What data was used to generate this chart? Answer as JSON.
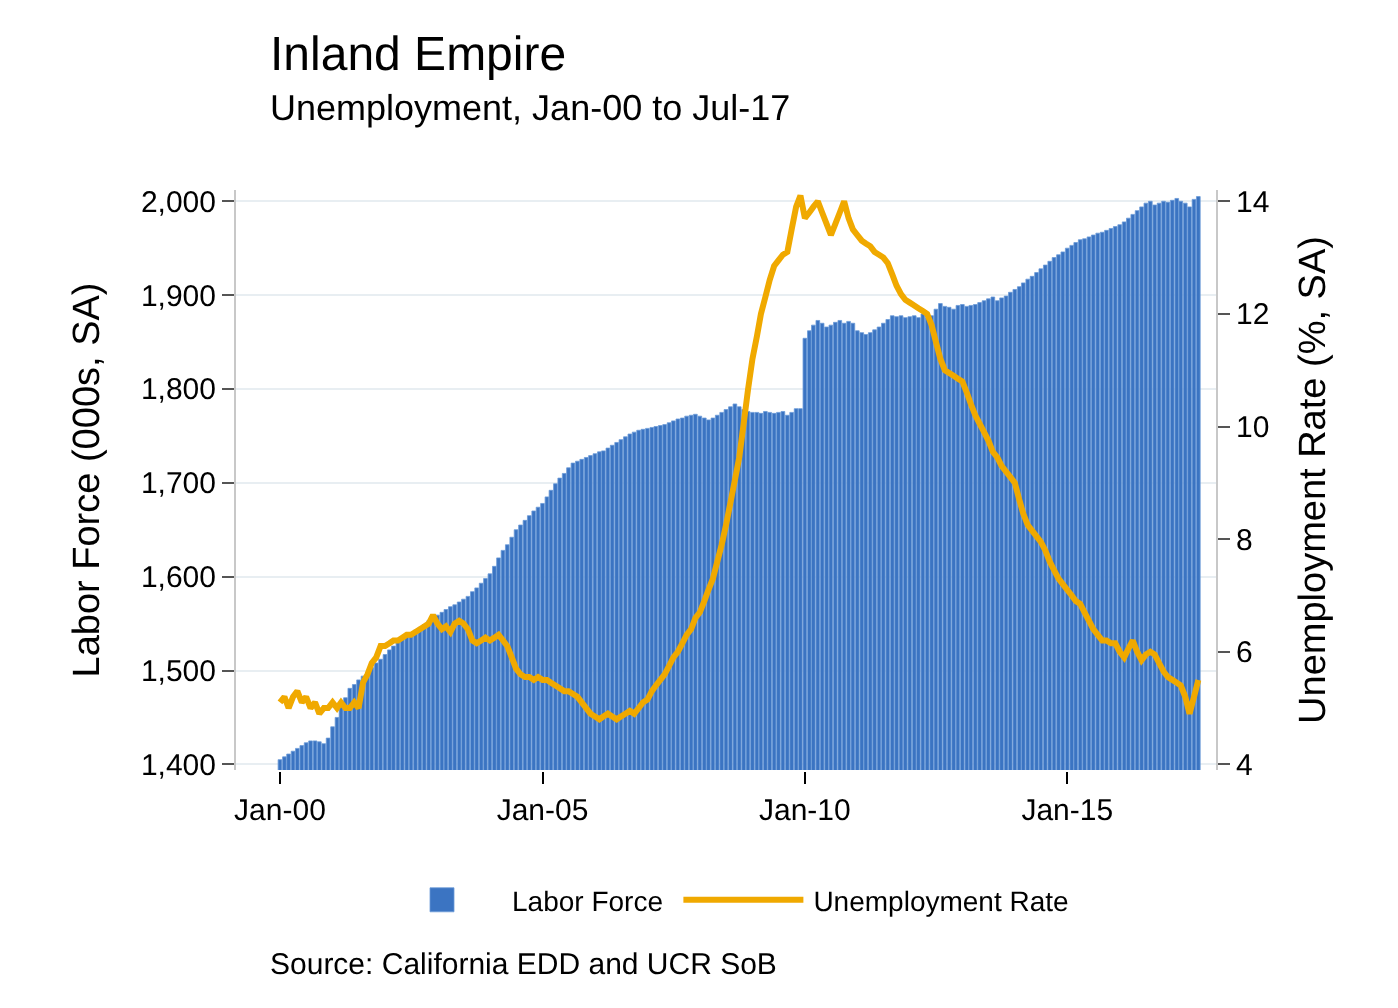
{
  "chart_data": {
    "type": "bar",
    "title": "Inland Empire",
    "subtitle": "Unemployment, Jan-00 to Jul-17",
    "xlabel": null,
    "ylabel": "Labor Force (000s, SA)",
    "y2label": "Unemployment Rate (%, SA)",
    "x": [
      "2000-01",
      "2000-02",
      "2000-03",
      "2000-04",
      "2000-05",
      "2000-06",
      "2000-07",
      "2000-08",
      "2000-09",
      "2000-10",
      "2000-11",
      "2000-12",
      "2001-01",
      "2001-02",
      "2001-03",
      "2001-04",
      "2001-05",
      "2001-06",
      "2001-07",
      "2001-08",
      "2001-09",
      "2001-10",
      "2001-11",
      "2001-12",
      "2002-01",
      "2002-02",
      "2002-03",
      "2002-04",
      "2002-05",
      "2002-06",
      "2002-07",
      "2002-08",
      "2002-09",
      "2002-10",
      "2002-11",
      "2002-12",
      "2003-01",
      "2003-02",
      "2003-03",
      "2003-04",
      "2003-05",
      "2003-06",
      "2003-07",
      "2003-08",
      "2003-09",
      "2003-10",
      "2003-11",
      "2003-12",
      "2004-01",
      "2004-02",
      "2004-03",
      "2004-04",
      "2004-05",
      "2004-06",
      "2004-07",
      "2004-08",
      "2004-09",
      "2004-10",
      "2004-11",
      "2004-12",
      "2005-01",
      "2005-02",
      "2005-03",
      "2005-04",
      "2005-05",
      "2005-06",
      "2005-07",
      "2005-08",
      "2005-09",
      "2005-10",
      "2005-11",
      "2005-12",
      "2006-01",
      "2006-02",
      "2006-03",
      "2006-04",
      "2006-05",
      "2006-06",
      "2006-07",
      "2006-08",
      "2006-09",
      "2006-10",
      "2006-11",
      "2006-12",
      "2007-01",
      "2007-02",
      "2007-03",
      "2007-04",
      "2007-05",
      "2007-06",
      "2007-07",
      "2007-08",
      "2007-09",
      "2007-10",
      "2007-11",
      "2007-12",
      "2008-01",
      "2008-02",
      "2008-03",
      "2008-04",
      "2008-05",
      "2008-06",
      "2008-07",
      "2008-08",
      "2008-09",
      "2008-10",
      "2008-11",
      "2008-12",
      "2009-01",
      "2009-02",
      "2009-03",
      "2009-04",
      "2009-05",
      "2009-06",
      "2009-07",
      "2009-08",
      "2009-09",
      "2009-10",
      "2009-11",
      "2009-12",
      "2010-01",
      "2010-02",
      "2010-03",
      "2010-04",
      "2010-05",
      "2010-06",
      "2010-07",
      "2010-08",
      "2010-09",
      "2010-10",
      "2010-11",
      "2010-12",
      "2011-01",
      "2011-02",
      "2011-03",
      "2011-04",
      "2011-05",
      "2011-06",
      "2011-07",
      "2011-08",
      "2011-09",
      "2011-10",
      "2011-11",
      "2011-12",
      "2012-01",
      "2012-02",
      "2012-03",
      "2012-04",
      "2012-05",
      "2012-06",
      "2012-07",
      "2012-08",
      "2012-09",
      "2012-10",
      "2012-11",
      "2012-12",
      "2013-01",
      "2013-02",
      "2013-03",
      "2013-04",
      "2013-05",
      "2013-06",
      "2013-07",
      "2013-08",
      "2013-09",
      "2013-10",
      "2013-11",
      "2013-12",
      "2014-01",
      "2014-02",
      "2014-03",
      "2014-04",
      "2014-05",
      "2014-06",
      "2014-07",
      "2014-08",
      "2014-09",
      "2014-10",
      "2014-11",
      "2014-12",
      "2015-01",
      "2015-02",
      "2015-03",
      "2015-04",
      "2015-05",
      "2015-06",
      "2015-07",
      "2015-08",
      "2015-09",
      "2015-10",
      "2015-11",
      "2015-12",
      "2016-01",
      "2016-02",
      "2016-03",
      "2016-04",
      "2016-05",
      "2016-06",
      "2016-07",
      "2016-08",
      "2016-09",
      "2016-10",
      "2016-11",
      "2016-12",
      "2017-01",
      "2017-02",
      "2017-03",
      "2017-04",
      "2017-05",
      "2017-06",
      "2017-07"
    ],
    "series": [
      {
        "name": "Labor Force",
        "color": "#3b74c2",
        "values": [
          1405,
          1408,
          1411,
          1414,
          1417,
          1420,
          1423,
          1425,
          1425,
          1424,
          1422,
          1428,
          1440,
          1450,
          1461,
          1471,
          1481,
          1485,
          1490,
          1494,
          1498,
          1503,
          1508,
          1512,
          1517,
          1522,
          1526,
          1531,
          1534,
          1537,
          1540,
          1543,
          1546,
          1549,
          1553,
          1556,
          1559,
          1562,
          1565,
          1568,
          1570,
          1573,
          1576,
          1579,
          1584,
          1588,
          1593,
          1598,
          1603,
          1611,
          1620,
          1628,
          1634,
          1642,
          1650,
          1655,
          1660,
          1665,
          1670,
          1674,
          1678,
          1685,
          1692,
          1699,
          1705,
          1710,
          1716,
          1721,
          1723,
          1725,
          1727,
          1729,
          1731,
          1733,
          1734,
          1737,
          1740,
          1743,
          1746,
          1749,
          1752,
          1754,
          1756,
          1757,
          1758,
          1759,
          1760,
          1761,
          1762,
          1764,
          1766,
          1768,
          1769,
          1771,
          1772,
          1773,
          1771,
          1769,
          1767,
          1769,
          1772,
          1775,
          1778,
          1781,
          1784,
          1781,
          1778,
          1776,
          1775,
          1775,
          1774,
          1776,
          1775,
          1774,
          1775,
          1776,
          1772,
          1775,
          1779,
          1779,
          1854,
          1862,
          1868,
          1873,
          1870,
          1866,
          1868,
          1871,
          1873,
          1870,
          1872,
          1870,
          1862,
          1860,
          1858,
          1860,
          1863,
          1866,
          1870,
          1874,
          1878,
          1877,
          1878,
          1876,
          1877,
          1878,
          1876,
          1880,
          1876,
          1878,
          1885,
          1891,
          1888,
          1887,
          1885,
          1889,
          1890,
          1888,
          1889,
          1890,
          1892,
          1894,
          1896,
          1898,
          1894,
          1897,
          1899,
          1903,
          1906,
          1909,
          1913,
          1917,
          1920,
          1924,
          1928,
          1932,
          1936,
          1940,
          1943,
          1946,
          1950,
          1953,
          1956,
          1959,
          1960,
          1962,
          1964,
          1966,
          1967,
          1969,
          1971,
          1973,
          1975,
          1978,
          1982,
          1986,
          1990,
          1994,
          1998,
          2000,
          1996,
          1998,
          2000,
          1999,
          2001,
          2003,
          2000,
          1998,
          1994,
          2002,
          2005
        ]
      },
      {
        "name": "Unemployment Rate",
        "type": "line",
        "axis": "y2",
        "color": "#f0a900",
        "values": [
          5.1,
          5.2,
          5.0,
          5.2,
          5.3,
          5.1,
          5.2,
          5.0,
          5.1,
          4.9,
          5.0,
          5.0,
          5.1,
          5.0,
          5.1,
          5.0,
          5.0,
          5.1,
          5.0,
          5.45,
          5.6,
          5.8,
          5.9,
          6.1,
          6.1,
          6.15,
          6.2,
          6.2,
          6.25,
          6.3,
          6.3,
          6.35,
          6.4,
          6.45,
          6.5,
          6.65,
          6.5,
          6.4,
          6.45,
          6.35,
          6.5,
          6.55,
          6.5,
          6.4,
          6.2,
          6.15,
          6.2,
          6.25,
          6.2,
          6.25,
          6.3,
          6.2,
          6.1,
          5.9,
          5.7,
          5.6,
          5.55,
          5.55,
          5.5,
          5.55,
          5.5,
          5.5,
          5.45,
          5.4,
          5.35,
          5.3,
          5.3,
          5.25,
          5.2,
          5.1,
          5.0,
          4.9,
          4.85,
          4.8,
          4.85,
          4.9,
          4.85,
          4.8,
          4.85,
          4.9,
          4.95,
          4.9,
          5.0,
          5.1,
          5.15,
          5.3,
          5.4,
          5.5,
          5.6,
          5.75,
          5.9,
          6.0,
          6.15,
          6.3,
          6.4,
          6.6,
          6.7,
          6.9,
          7.1,
          7.3,
          7.6,
          7.9,
          8.25,
          8.65,
          9.05,
          9.45,
          10.05,
          10.65,
          11.2,
          11.6,
          12.0,
          12.3,
          12.6,
          12.85,
          12.95,
          13.05,
          13.1,
          13.5,
          13.9,
          14.1,
          13.7,
          13.8,
          13.9,
          14.0,
          13.8,
          13.6,
          13.4,
          13.6,
          13.8,
          14.0,
          13.7,
          13.5,
          13.4,
          13.3,
          13.25,
          13.2,
          13.1,
          13.05,
          13.0,
          12.9,
          12.7,
          12.5,
          12.35,
          12.25,
          12.2,
          12.15,
          12.1,
          12.05,
          12.0,
          11.8,
          11.5,
          11.2,
          11.0,
          10.95,
          10.9,
          10.85,
          10.8,
          10.6,
          10.4,
          10.2,
          10.05,
          9.9,
          9.75,
          9.55,
          9.45,
          9.3,
          9.2,
          9.1,
          9.0,
          8.7,
          8.45,
          8.25,
          8.15,
          8.05,
          7.95,
          7.8,
          7.6,
          7.45,
          7.3,
          7.2,
          7.1,
          7.0,
          6.9,
          6.85,
          6.7,
          6.55,
          6.4,
          6.3,
          6.2,
          6.2,
          6.15,
          6.15,
          6.0,
          5.9,
          6.05,
          6.2,
          6.0,
          5.85,
          5.95,
          6.0,
          5.95,
          5.8,
          5.65,
          5.55,
          5.5,
          5.45,
          5.4,
          5.2,
          4.9,
          5.2,
          5.5
        ]
      }
    ],
    "xlim": [
      "1999-03",
      "2017-11"
    ],
    "xticks": [
      {
        "value": "2000-01",
        "label": "Jan-00"
      },
      {
        "value": "2005-01",
        "label": "Jan-05"
      },
      {
        "value": "2010-01",
        "label": "Jan-10"
      },
      {
        "value": "2015-01",
        "label": "Jan-15"
      }
    ],
    "ylim": [
      1394,
      2012
    ],
    "yticks": [
      {
        "value": 1400,
        "label": "1,400"
      },
      {
        "value": 1500,
        "label": "1,500"
      },
      {
        "value": 1600,
        "label": "1,600"
      },
      {
        "value": 1700,
        "label": "1,700"
      },
      {
        "value": 1800,
        "label": "1,800"
      },
      {
        "value": 1900,
        "label": "1,900"
      },
      {
        "value": 2000,
        "label": "2,000"
      }
    ],
    "y2lim": [
      3.9,
      14.2
    ],
    "y2ticks": [
      4,
      6,
      8,
      10,
      12,
      14
    ],
    "grid": "y",
    "legend": "bottom",
    "marker": "none",
    "line_style": "solid",
    "annotations": [
      "Source: California EDD and UCR SoB"
    ]
  }
}
